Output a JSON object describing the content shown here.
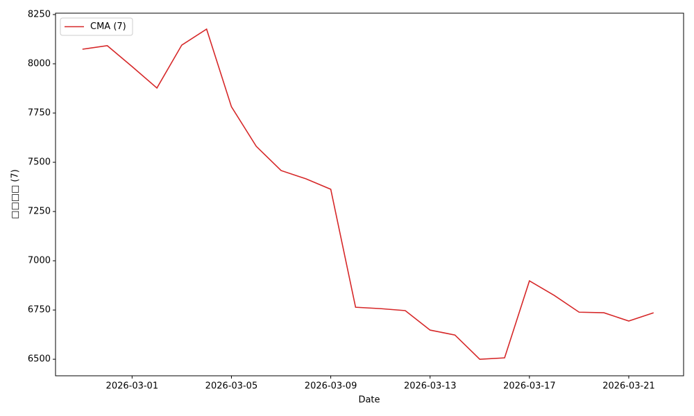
{
  "chart_data": {
    "type": "line",
    "x": [
      "2026-02-27",
      "2026-02-28",
      "2026-03-01",
      "2026-03-02",
      "2026-03-03",
      "2026-03-04",
      "2026-03-05",
      "2026-03-06",
      "2026-03-07",
      "2026-03-08",
      "2026-03-09",
      "2026-03-10",
      "2026-03-11",
      "2026-03-12",
      "2026-03-13",
      "2026-03-14",
      "2026-03-15",
      "2026-03-16",
      "2026-03-17",
      "2026-03-18",
      "2026-03-19",
      "2026-03-20",
      "2026-03-21",
      "2026-03-22"
    ],
    "series": [
      {
        "name": "CMA (7)",
        "color": "#d62728",
        "values": [
          8074,
          8092,
          7986,
          7877,
          8095,
          8176,
          7782,
          7581,
          7458,
          7416,
          7363,
          6764,
          6757,
          6747,
          6648,
          6623,
          6500,
          6507,
          6898,
          6824,
          6739,
          6736,
          6694,
          6736
        ]
      }
    ],
    "xlabel": "Date",
    "ylabel": "□□□□ (7)",
    "xlim": [
      "2026-02-25T22:00Z",
      "2026-03-23T05:00Z"
    ],
    "xticks": [
      "2026-03-01",
      "2026-03-05",
      "2026-03-09",
      "2026-03-13",
      "2026-03-17",
      "2026-03-21"
    ],
    "ylim": [
      6416,
      8257
    ],
    "yticks": [
      6500,
      6750,
      7000,
      7250,
      7500,
      7750,
      8000,
      8250
    ],
    "legend": "upper-left",
    "grid": false
  }
}
